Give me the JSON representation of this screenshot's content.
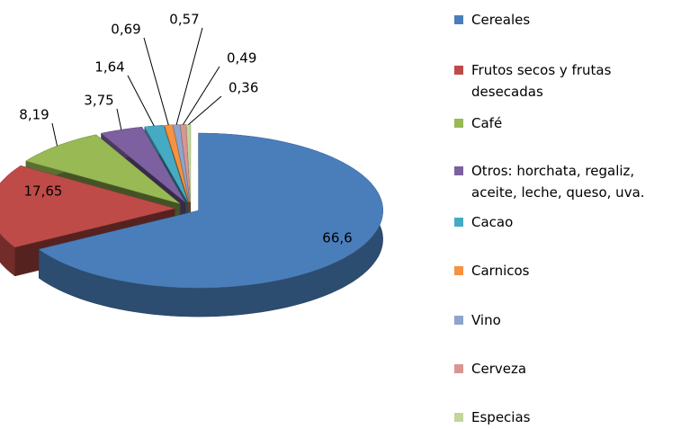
{
  "chart_data": {
    "type": "pie",
    "categories": [
      "Cereales",
      "Frutos secos  y frutas desecadas",
      "Café",
      "Otros: horchata, regaliz, aceite, leche, queso, uva.",
      "Cacao",
      "Carnicos",
      "Vino",
      "Cerveza",
      "Especias"
    ],
    "values": [
      66.6,
      17.65,
      8.19,
      3.75,
      1.64,
      0.69,
      0.57,
      0.49,
      0.36
    ],
    "value_labels": [
      "66,6",
      "17,65",
      "8,19",
      "3,75",
      "1,64",
      "0,69",
      "0,57",
      "0,49",
      "0,36"
    ],
    "colors": [
      "#4a7ebb",
      "#be4b48",
      "#98b954",
      "#7d60a0",
      "#46aac5",
      "#f69240",
      "#8ea5cb",
      "#d99594",
      "#c3d69b"
    ],
    "legend": "right"
  }
}
